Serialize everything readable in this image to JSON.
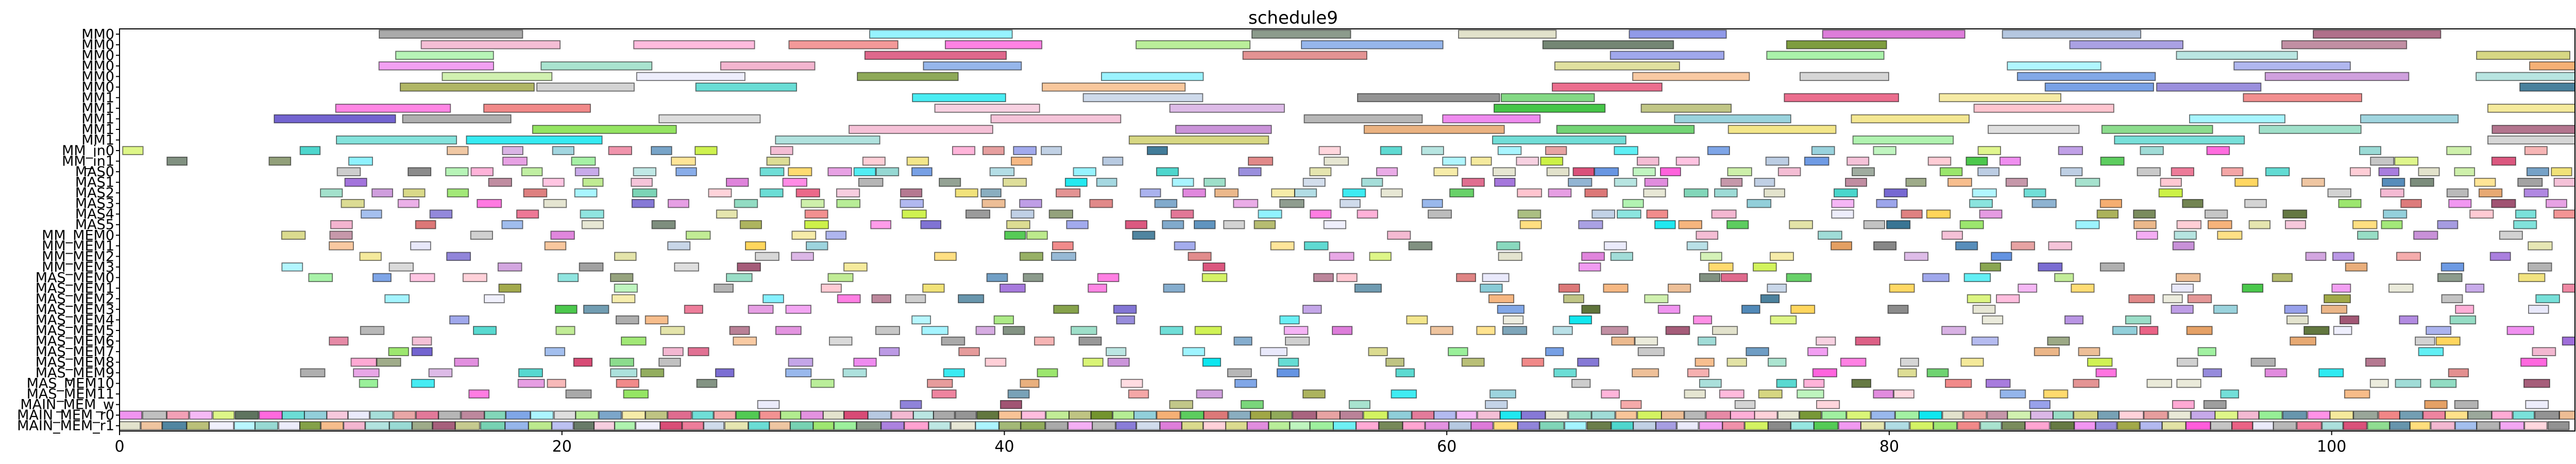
{
  "chart_data": {
    "type": "gantt",
    "title": "schedule9",
    "xlabel": "",
    "ylabel": "",
    "xlim": [
      0,
      111
    ],
    "x_ticks": [
      0,
      20,
      40,
      60,
      80,
      100
    ],
    "grid": false,
    "legend": "none",
    "rows": [
      "MM0",
      "MM0",
      "MM0",
      "MM0",
      "MM0",
      "MM0",
      "MM1",
      "MM1",
      "MM1",
      "MM1",
      "MM1",
      "MM_in0",
      "MM_in1",
      "MAS0",
      "MAS1",
      "MAS2",
      "MAS3",
      "MAS4",
      "MAS5",
      "MM_MEM0",
      "MM_MEM1",
      "MM_MEM2",
      "MM_MEM3",
      "MAS_MEM0",
      "MAS_MEM1",
      "MAS_MEM2",
      "MAS_MEM3",
      "MAS_MEM4",
      "MAS_MEM5",
      "MAS_MEM6",
      "MAS_MEM7",
      "MAS_MEM8",
      "MAS_MEM9",
      "MAS_MEM10",
      "MAS_MEM11",
      "MAIN_MEM_w",
      "MAIN_MEM_r0",
      "MAIN_MEM_r1"
    ],
    "palette": [
      "#9b4a6a",
      "#d6406d",
      "#e8567c",
      "#8fd6d0",
      "#3fd3c9",
      "#f2b0cc",
      "#c58ad6",
      "#9a66d8",
      "#6a5acd",
      "#8b95e8",
      "#5b8de0",
      "#4682b4",
      "#2e6e8e",
      "#7fc7d4",
      "#66cdaa",
      "#90ee90",
      "#b8e986",
      "#c9f03c",
      "#8ee35a",
      "#38c23a",
      "#556b2f",
      "#6b8e23",
      "#9aa23a",
      "#d4d47a",
      "#f0e070",
      "#ffd24d",
      "#f4a460",
      "#e39a5a",
      "#f08080",
      "#d96b6b",
      "#e0e0c8",
      "#c8c8c8",
      "#a8a8a8",
      "#808080",
      "#556b55",
      "#7ff0ff",
      "#00e5ee",
      "#ff4fd8",
      "#da70d6",
      "#ee82ee",
      "#ff99cc",
      "#ffc0cb",
      "#e6e6fa",
      "#b0c4de"
    ]
  }
}
